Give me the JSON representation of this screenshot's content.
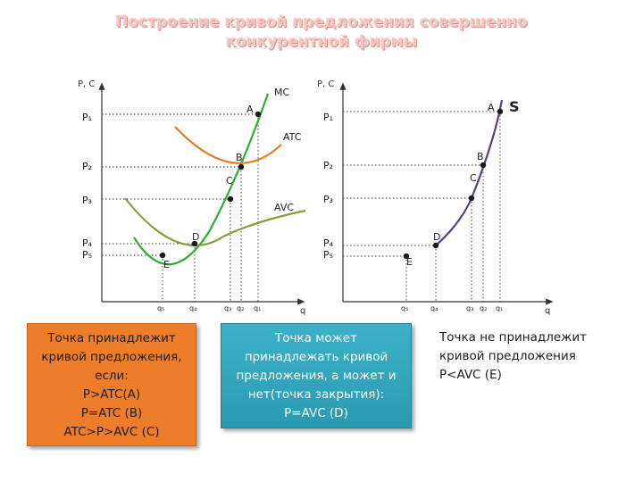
{
  "title_lines": [
    "Построение кривой предложения совершенно",
    "конкурентной фирмы"
  ],
  "colors": {
    "mc": "#2fae35",
    "atc": "#e87a1d",
    "avc": "#8a9a3c",
    "s": "#58407c",
    "point": "#1a1a1a",
    "title": "#f3c6c2"
  },
  "left_graph": {
    "y_axis_label": "P, C",
    "x_axis_label": "q",
    "curve_labels": {
      "mc": "MC",
      "atc": "ATC",
      "avc": "AVC"
    },
    "price_labels": [
      "P₁",
      "P₂",
      "P₃",
      "P₄",
      "P₅"
    ],
    "quantity_labels": [
      "q₅",
      "q₄",
      "q₃",
      "q₂",
      "q₁"
    ],
    "point_labels": [
      "A",
      "B",
      "C",
      "D",
      "E"
    ]
  },
  "right_graph": {
    "y_axis_label": "P, C",
    "x_axis_label": "q",
    "curve_labels": {
      "s": "S"
    },
    "price_labels": [
      "P₁",
      "P₂",
      "P₃",
      "P₄",
      "P₅"
    ],
    "quantity_labels": [
      "q₅",
      "q₄",
      "q₃",
      "q₂",
      "q₁"
    ],
    "point_labels": [
      "A",
      "B",
      "C",
      "D",
      "E"
    ]
  },
  "boxes": {
    "orange": [
      "Точка принадлежит",
      "кривой предложения,",
      "если:",
      "P>ATC(A)",
      "P=ATC (B)",
      "ATC>P>AVC (C)"
    ],
    "cyan": [
      "Точка может",
      "принадлежать кривой",
      "предложения, а может и",
      "нет(точка закрытия):",
      "P=AVC (D)"
    ],
    "plain": [
      "Точка не принадлежит",
      "кривой предложения",
      "P<AVC (E)"
    ]
  }
}
